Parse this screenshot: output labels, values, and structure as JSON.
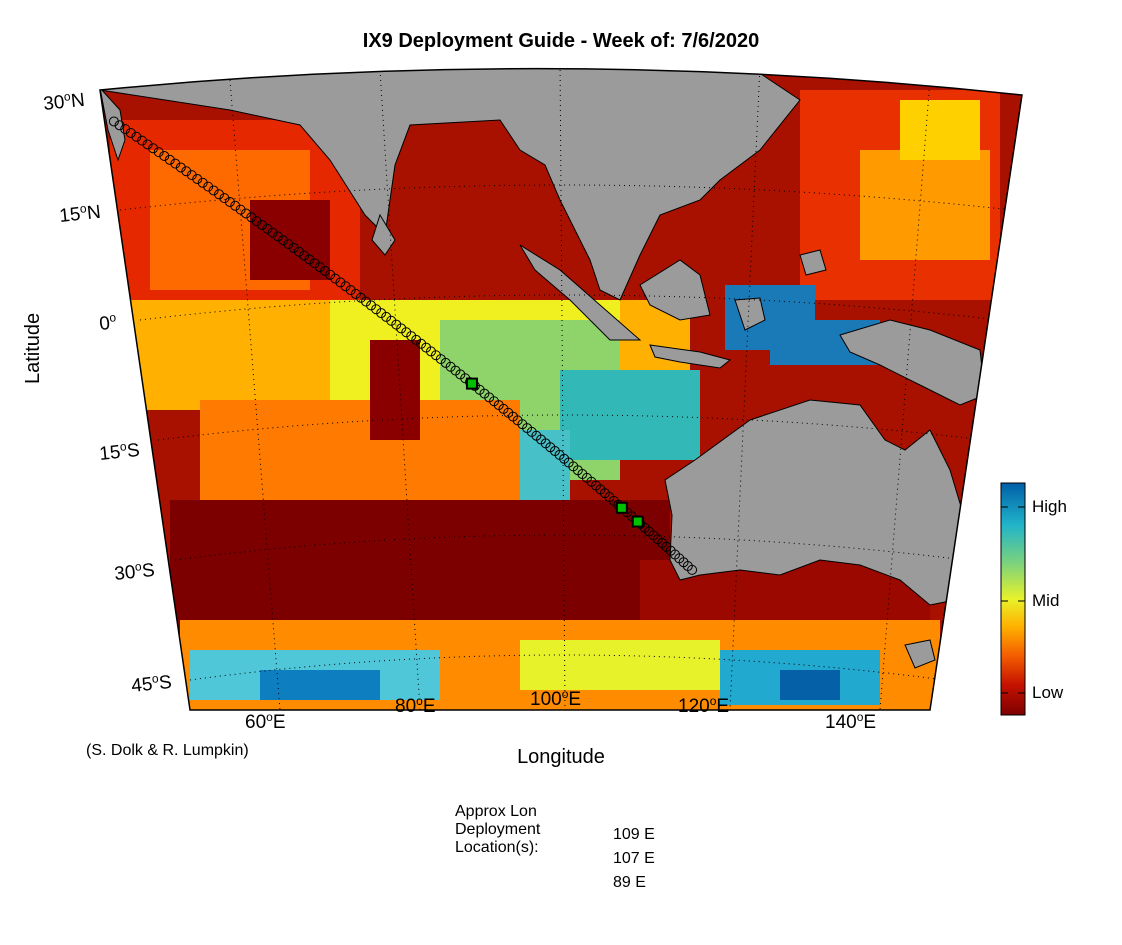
{
  "title": "IX9 Deployment Guide - Week of: 7/6/2020",
  "axes": {
    "xlabel": "Longitude",
    "ylabel": "Latitude",
    "lon_ticks": [
      {
        "value": 60,
        "label": "60",
        "suffix": "E"
      },
      {
        "value": 80,
        "label": "80",
        "suffix": "E"
      },
      {
        "value": 100,
        "label": "100",
        "suffix": "E"
      },
      {
        "value": 120,
        "label": "120",
        "suffix": "E"
      },
      {
        "value": 140,
        "label": "140",
        "suffix": "E"
      }
    ],
    "lat_ticks": [
      {
        "value": 30,
        "label": "30",
        "suffix": "N"
      },
      {
        "value": 15,
        "label": "15",
        "suffix": "N"
      },
      {
        "value": 0,
        "label": "0",
        "suffix": ""
      },
      {
        "value": -15,
        "label": "15",
        "suffix": "S"
      },
      {
        "value": -30,
        "label": "30",
        "suffix": "S"
      },
      {
        "value": -45,
        "label": "45",
        "suffix": "S"
      }
    ],
    "lon_range": [
      50,
      150
    ],
    "lat_range": [
      -50,
      30
    ],
    "grid": true,
    "projection": "conic"
  },
  "colorbar": {
    "labels": [
      "High",
      "Mid",
      "Low"
    ],
    "colormap": "jet-reversed",
    "colors": [
      "#005fa8",
      "#21b4c9",
      "#7fd37a",
      "#e8f22a",
      "#ffb000",
      "#f25a00",
      "#c51200",
      "#7d0000"
    ]
  },
  "land_color": "#9b9b9b",
  "track": {
    "start": {
      "lon": 51,
      "lat": 26
    },
    "end": {
      "lon": 116,
      "lat": -31
    },
    "marker_count": 118,
    "highlighted_lon": [
      89,
      107,
      109
    ]
  },
  "credit": "(S. Dolk & R. Lumpkin)",
  "deployment": {
    "heading": [
      "Approx Lon",
      "Deployment",
      "Location(s):"
    ],
    "locations": [
      "109 E",
      "107 E",
      "89 E"
    ]
  }
}
